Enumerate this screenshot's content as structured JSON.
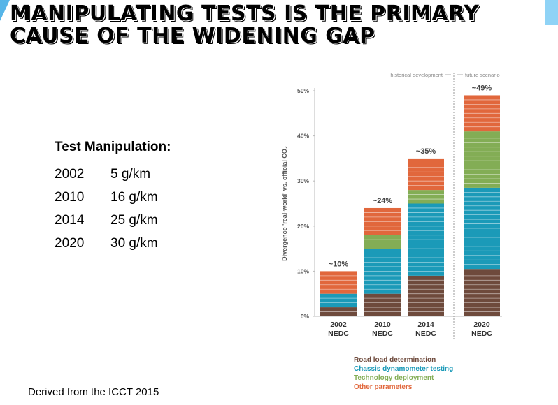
{
  "slide": {
    "title_line1": "MANIPULATING TESTS IS THE PRIMARY",
    "title_line2": "CAUSE OF THE WIDENING GAP",
    "footer": "Derived from the ICCT 2015"
  },
  "manipulation": {
    "heading": "Test Manipulation:",
    "rows": [
      {
        "year": "2002",
        "value": "5 g/km"
      },
      {
        "year": "2010",
        "value": "16 g/km"
      },
      {
        "year": "2014",
        "value": "25 g/km"
      },
      {
        "year": "2020",
        "value": "30 g/km"
      }
    ]
  },
  "chart_data": {
    "type": "bar",
    "stacked": true,
    "categories": [
      "2002\nNEDC",
      "2010\nNEDC",
      "2014\nNEDC",
      "2020\nNEDC"
    ],
    "category_year": [
      "2002",
      "2010",
      "2014",
      "2020"
    ],
    "category_cycle": "NEDC",
    "series": [
      {
        "name": "Road load determination",
        "color": "#6e4a3c",
        "values": [
          2,
          5,
          9,
          10.5
        ]
      },
      {
        "name": "Chassis dynamometer testing",
        "color": "#1b9ab8",
        "values": [
          3,
          10,
          16,
          18
        ]
      },
      {
        "name": "Technology deployment",
        "color": "#83ad55",
        "values": [
          0,
          3,
          3,
          12.5
        ]
      },
      {
        "name": "Other parameters",
        "color": "#e1673c",
        "values": [
          5,
          6,
          7,
          8
        ]
      }
    ],
    "total_labels": [
      "~10%",
      "~24%",
      "~35%",
      "~49%"
    ],
    "ylabel": "Divergence 'real-world' vs. official CO₂",
    "ylim": [
      0,
      50
    ],
    "yticks": [
      "0%",
      "10%",
      "20%",
      "30%",
      "40%",
      "50%"
    ],
    "annotations": {
      "historical": "historical development",
      "future": "future scenario"
    },
    "legend_position": "bottom",
    "grid": false
  }
}
